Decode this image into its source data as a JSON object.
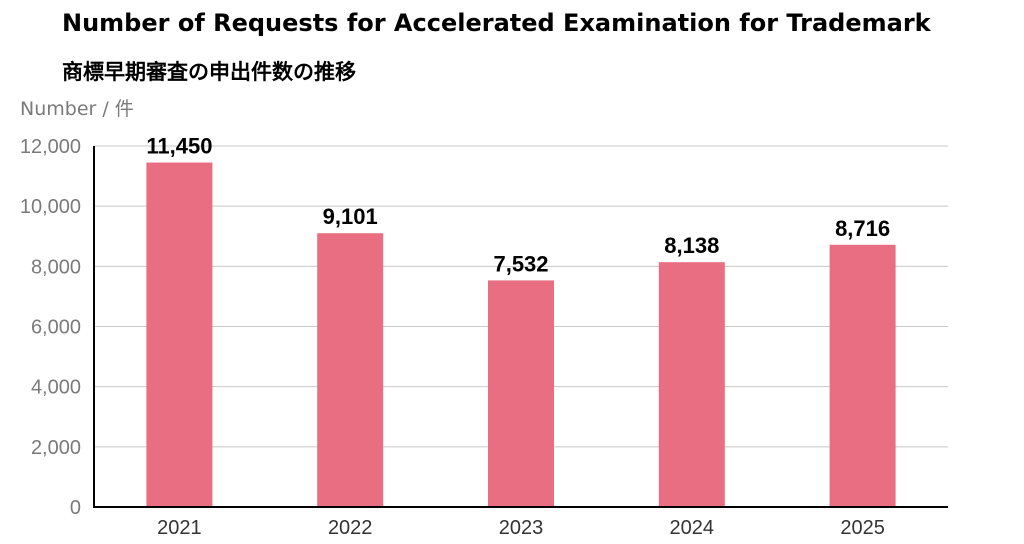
{
  "chart_data": {
    "type": "bar",
    "title": "Number of Requests for Accelerated Examination for Trademark",
    "subtitle": "商標早期審査の申出件数の推移",
    "ylabel": "Number / 件",
    "xlabel": "",
    "categories": [
      "2021",
      "2022",
      "2023",
      "2024",
      "2025"
    ],
    "values": [
      11450,
      9101,
      7532,
      8138,
      8716
    ],
    "value_labels": [
      "11,450",
      "9,101",
      "7,532",
      "8,138",
      "8,716"
    ],
    "ylim": [
      0,
      12000
    ],
    "yticks": [
      0,
      2000,
      4000,
      6000,
      8000,
      10000,
      12000
    ],
    "ytick_labels": [
      "0",
      "2,000",
      "4,000",
      "6,000",
      "8,000",
      "10,000",
      "12,000"
    ],
    "grid": true,
    "bar_color": "#e96e82",
    "grid_color": "#c8c8c8",
    "tick_label_color": "#7a7a7a"
  }
}
